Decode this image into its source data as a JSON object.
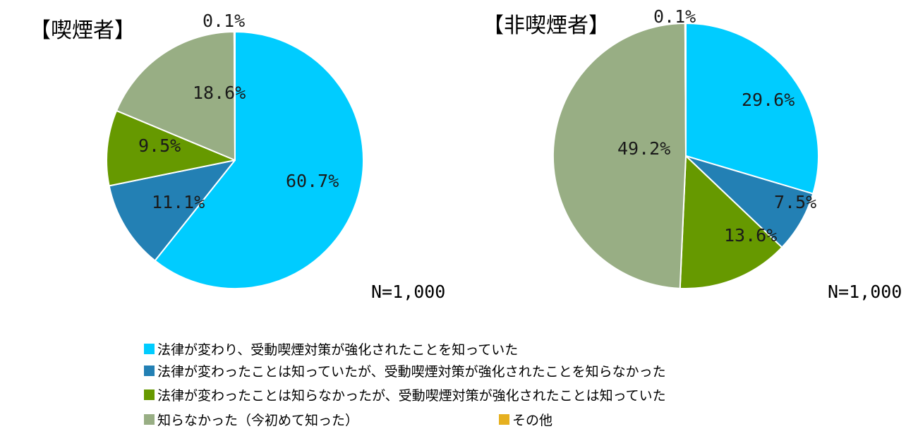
{
  "chart_data": [
    {
      "type": "pie",
      "title": "【喫煙者】",
      "n_label": "N=1,000",
      "slices": [
        {
          "series": 0,
          "value": 60.7,
          "label": "60.7%"
        },
        {
          "series": 1,
          "value": 11.1,
          "label": "11.1%"
        },
        {
          "series": 2,
          "value": 9.5,
          "label": "9.5%"
        },
        {
          "series": 3,
          "value": 18.6,
          "label": "18.6%"
        },
        {
          "series": 4,
          "value": 0.1,
          "label": "0.1%"
        }
      ]
    },
    {
      "type": "pie",
      "title": "【非喫煙者】",
      "n_label": "N=1,000",
      "slices": [
        {
          "series": 0,
          "value": 29.6,
          "label": "29.6%"
        },
        {
          "series": 1,
          "value": 7.5,
          "label": "7.5%"
        },
        {
          "series": 2,
          "value": 13.6,
          "label": "13.6%"
        },
        {
          "series": 3,
          "value": 49.2,
          "label": "49.2%"
        },
        {
          "series": 4,
          "value": 0.1,
          "label": "0.1%"
        }
      ]
    }
  ],
  "legend": [
    {
      "label": "法律が変わり、受動喫煙対策が強化されたことを知っていた",
      "color": "#00CCFF"
    },
    {
      "label": "法律が変わったことは知っていたが、受動喫煙対策が強化されたことを知らなかった",
      "color": "#2380B4"
    },
    {
      "label": "法律が変わったことは知らなかったが、受動喫煙対策が強化されたことは知っていた",
      "color": "#669900"
    },
    {
      "label": "知らなかった（今初めて知った）",
      "color": "#98AE84"
    },
    {
      "label": "その他",
      "color": "#E6B020"
    }
  ],
  "legend_placement": "bottom"
}
